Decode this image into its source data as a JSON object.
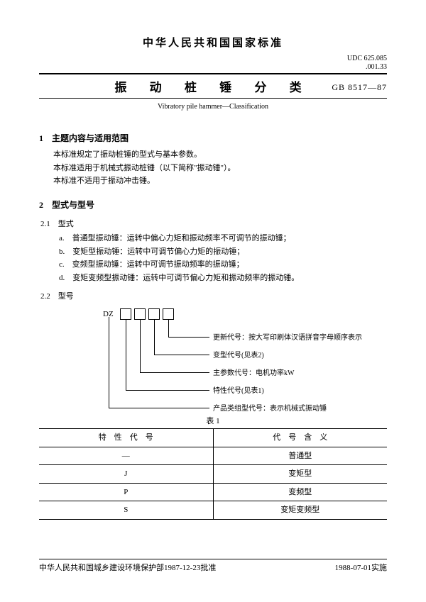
{
  "header": {
    "org": "中华人民共和国国家标准",
    "udc1": "UDC 625.085",
    "udc2": ".001.33",
    "title": "振 动 桩 锤 分 类",
    "gb": "GB 8517—87",
    "subtitle": "Vibratory pile hammer—Classification"
  },
  "sec1": {
    "head": "1　主题内容与适用范围",
    "p1": "本标准规定了振动桩锤的型式与基本参数。",
    "p2": "本标准适用于机械式振动桩锤（以下简称\"振动锤\"）。",
    "p3": "本标准不适用于振动冲击锤。"
  },
  "sec2": {
    "head": "2　型式与型号",
    "s21": "2.1　型式",
    "a": "a.　普通型振动锤：运转中偏心力矩和振动频率不可调节的振动锤；",
    "b": "b.　变矩型振动锤：运转中可调节偏心力矩的振动锤；",
    "c": "c.　变频型振动锤：运转中可调节振动频率的振动锤；",
    "d": "d.　变矩变频型振动锤：运转中可调节偏心力矩和振动频率的振动锤。",
    "s22": "2.2　型号",
    "dz": "DZ",
    "lbl1": "更新代号：按大写印刷体汉语拼音字母顺序表示",
    "lbl2": "变型代号(见表2)",
    "lbl3": "主参数代号：电机功率kW",
    "lbl4": "特性代号(见表1)",
    "lbl5": "产品类组型代号：表示机械式振动锤"
  },
  "table1": {
    "title": "表 1",
    "h1": "特　性　代　号",
    "h2": "代　号　含　义",
    "rows": [
      {
        "c1": "—",
        "c2": "普通型"
      },
      {
        "c1": "J",
        "c2": "变矩型"
      },
      {
        "c1": "P",
        "c2": "变频型"
      },
      {
        "c1": "S",
        "c2": "变矩变频型"
      }
    ]
  },
  "footer": {
    "left": "中华人民共和国城乡建设环境保护部1987-12-23批准",
    "right": "1988-07-01实施"
  }
}
